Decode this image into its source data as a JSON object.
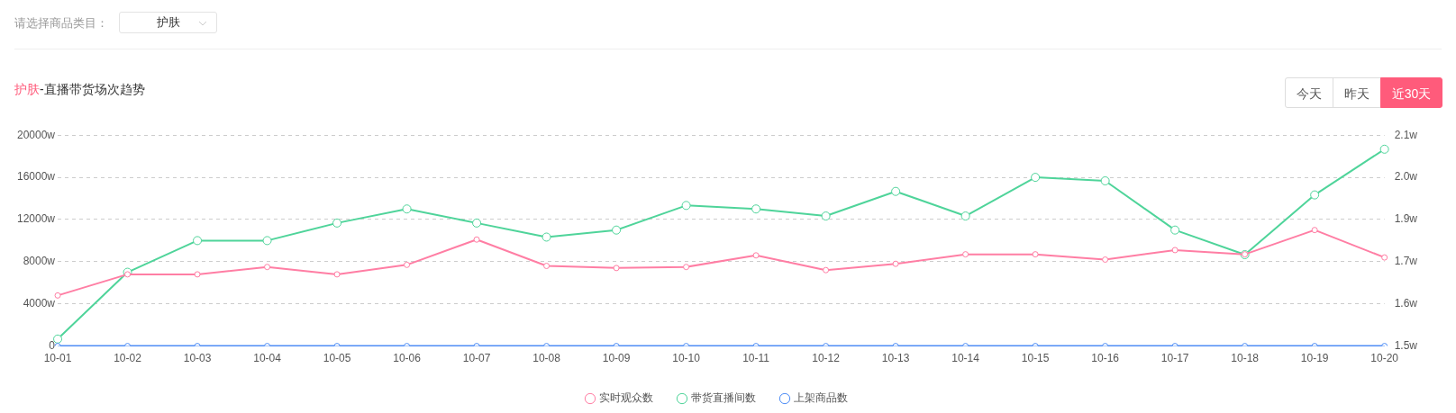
{
  "chart_data": {
    "type": "line",
    "title": "护肤-直播带货场次趋势",
    "annotations": [
      "请选择商品类目：",
      "护肤",
      "今天",
      "昨天",
      "近30天"
    ],
    "categories": [
      "10-01",
      "10-02",
      "10-03",
      "10-04",
      "10-05",
      "10-06",
      "10-07",
      "10-08",
      "10-09",
      "10-10",
      "10-11",
      "10-12",
      "10-13",
      "10-14",
      "10-15",
      "10-16",
      "10-17",
      "10-18",
      "10-19",
      "10-20"
    ],
    "series": [
      {
        "name": "实时观众数",
        "color": "#ff7ea4",
        "values": [
          4800,
          6800,
          6800,
          7500,
          6800,
          7700,
          10100,
          7600,
          7400,
          7500,
          8600,
          7200,
          7800,
          8700,
          8700,
          8200,
          9100,
          8700,
          11000,
          8400
        ]
      },
      {
        "name": "带货直播间数",
        "color": "#4fd49a",
        "axis": "y2",
        "values": [
          1.52,
          1.71,
          1.8,
          1.8,
          1.85,
          1.89,
          1.85,
          1.81,
          1.83,
          1.9,
          1.89,
          1.87,
          1.94,
          1.87,
          1.98,
          1.97,
          1.83,
          1.76,
          1.93,
          2.06
        ]
      },
      {
        "name": "上架商品数",
        "color": "#4e8df6",
        "values": [
          0,
          0,
          0,
          0,
          0,
          0,
          0,
          0,
          0,
          0,
          0,
          0,
          0,
          0,
          0,
          0,
          0,
          0,
          0,
          0
        ]
      }
    ],
    "ylim": [
      0,
      20000
    ],
    "yticks": [
      0,
      {
        "value": 4000,
        "label": "4000w"
      },
      {
        "value": 8000,
        "label": "8000w"
      },
      {
        "value": 12000,
        "label": "12000w"
      },
      {
        "value": 16000,
        "label": "16000w"
      },
      {
        "value": 20000,
        "label": "20000w"
      }
    ],
    "y2lim": [
      1.5,
      2.1
    ],
    "y2ticks": [
      {
        "value": 1.5,
        "label": "1.5w"
      },
      {
        "value": 1.62,
        "label": "1.6w"
      },
      {
        "value": 1.74,
        "label": "1.7w"
      },
      {
        "value": 1.86,
        "label": "1.9w"
      },
      {
        "value": 1.98,
        "label": "2.0w"
      },
      {
        "value": 2.1,
        "label": "2.1w"
      }
    ],
    "grid": "y",
    "legend": "bottom",
    "marker": "circle",
    "line_style": "solid"
  }
}
